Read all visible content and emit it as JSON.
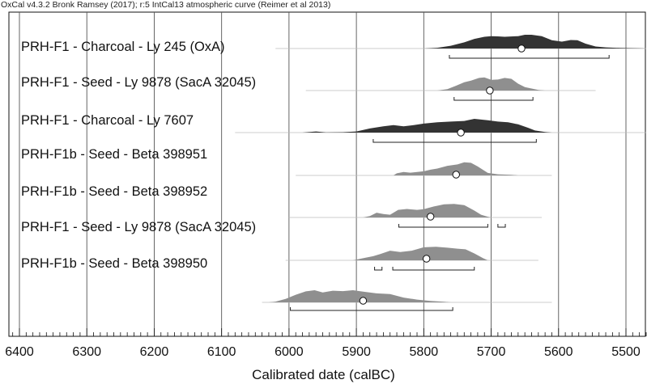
{
  "header": "OxCal v4.3.2 Bronk Ramsey (2017); r:5 IntCal13 atmospheric curve (Reimer et al 2013)",
  "chart_data": {
    "type": "area",
    "title": "",
    "xlabel": "Calibrated date (calBC)",
    "ylabel": "",
    "xlim": [
      6410,
      5470
    ],
    "x_reversed": true,
    "grid": true,
    "x_ticks": [
      6400,
      6300,
      6200,
      6100,
      6000,
      5900,
      5800,
      5700,
      5600,
      5500
    ],
    "series": [
      {
        "name": "PRH-F1 - Charcoal - Ly 245 (OxA)",
        "style": "dark",
        "median": 5655,
        "range_68": [
          5762,
          5525
        ],
        "outline": [
          6020,
          5470
        ],
        "density": [
          [
            5800,
            0
          ],
          [
            5780,
            0.05
          ],
          [
            5760,
            0.2
          ],
          [
            5740,
            0.45
          ],
          [
            5725,
            0.7
          ],
          [
            5710,
            0.85
          ],
          [
            5700,
            0.9
          ],
          [
            5690,
            0.88
          ],
          [
            5680,
            0.85
          ],
          [
            5660,
            0.9
          ],
          [
            5650,
            1.0
          ],
          [
            5640,
            1.0
          ],
          [
            5625,
            0.9
          ],
          [
            5610,
            0.6
          ],
          [
            5595,
            0.5
          ],
          [
            5582,
            0.62
          ],
          [
            5572,
            0.6
          ],
          [
            5560,
            0.35
          ],
          [
            5545,
            0.15
          ],
          [
            5530,
            0.08
          ],
          [
            5510,
            0.04
          ],
          [
            5480,
            0.01
          ],
          [
            5470,
            0
          ]
        ]
      },
      {
        "name": "PRH-F1 - Seed - Ly 9878 (SacA 32045)",
        "style": "light",
        "median": 5702,
        "range_68": [
          5755,
          5638
        ],
        "outline": [
          5975,
          5545
        ],
        "density": [
          [
            5780,
            0
          ],
          [
            5765,
            0.1
          ],
          [
            5752,
            0.35
          ],
          [
            5740,
            0.6
          ],
          [
            5730,
            0.72
          ],
          [
            5718,
            0.92
          ],
          [
            5710,
            0.95
          ],
          [
            5700,
            0.78
          ],
          [
            5690,
            0.8
          ],
          [
            5680,
            0.92
          ],
          [
            5670,
            0.85
          ],
          [
            5660,
            0.5
          ],
          [
            5650,
            0.25
          ],
          [
            5640,
            0.15
          ],
          [
            5630,
            0.05
          ],
          [
            5620,
            0
          ]
        ]
      },
      {
        "name": "PRH-F1 - Charcoal - Ly 7607",
        "style": "dark",
        "median": 5745,
        "range_68": [
          5875,
          5633
        ],
        "outline": [
          6080,
          5470
        ],
        "density": [
          [
            5980,
            0
          ],
          [
            5960,
            0.08
          ],
          [
            5945,
            0.02
          ],
          [
            5920,
            0.03
          ],
          [
            5900,
            0.08
          ],
          [
            5880,
            0.3
          ],
          [
            5860,
            0.45
          ],
          [
            5845,
            0.55
          ],
          [
            5830,
            0.45
          ],
          [
            5815,
            0.55
          ],
          [
            5800,
            0.65
          ],
          [
            5780,
            0.75
          ],
          [
            5760,
            0.8
          ],
          [
            5740,
            0.85
          ],
          [
            5725,
            1.0
          ],
          [
            5705,
            0.9
          ],
          [
            5690,
            0.8
          ],
          [
            5675,
            0.75
          ],
          [
            5660,
            0.6
          ],
          [
            5645,
            0.35
          ],
          [
            5635,
            0.15
          ],
          [
            5620,
            0.04
          ],
          [
            5610,
            0
          ]
        ]
      },
      {
        "name": "PRH-F1b - Seed - Beta 398951",
        "style": "light",
        "median": 5752,
        "range_68": [],
        "outline": [
          5990,
          5610
        ],
        "density": [
          [
            5845,
            0
          ],
          [
            5840,
            0.15
          ],
          [
            5830,
            0.25
          ],
          [
            5820,
            0.2
          ],
          [
            5800,
            0.3
          ],
          [
            5790,
            0.42
          ],
          [
            5780,
            0.5
          ],
          [
            5765,
            0.7
          ],
          [
            5750,
            0.8
          ],
          [
            5740,
            0.95
          ],
          [
            5730,
            0.92
          ],
          [
            5720,
            0.65
          ],
          [
            5705,
            0.18
          ],
          [
            5690,
            0.08
          ],
          [
            5670,
            0.05
          ],
          [
            5660,
            0
          ]
        ]
      },
      {
        "name": "PRH-F1b - Seed - Beta 398952",
        "style": "light",
        "median": 5790,
        "range_68": [
          [
            5837,
            5705
          ],
          [
            5690,
            5679
          ]
        ],
        "outline": [
          6000,
          5625
        ],
        "density": [
          [
            5890,
            0
          ],
          [
            5880,
            0.1
          ],
          [
            5870,
            0.35
          ],
          [
            5860,
            0.25
          ],
          [
            5850,
            0.2
          ],
          [
            5838,
            0.55
          ],
          [
            5825,
            0.62
          ],
          [
            5810,
            0.55
          ],
          [
            5800,
            0.6
          ],
          [
            5785,
            0.8
          ],
          [
            5770,
            0.95
          ],
          [
            5755,
            0.98
          ],
          [
            5740,
            0.9
          ],
          [
            5725,
            0.5
          ],
          [
            5715,
            0.2
          ],
          [
            5705,
            0.05
          ],
          [
            5700,
            0
          ]
        ]
      },
      {
        "name": "PRH-F1 - Seed - Ly 9878 (SacA 32045)",
        "style": "light",
        "median": 5796,
        "range_68": [
          [
            5873,
            5862
          ],
          [
            5846,
            5725
          ]
        ],
        "outline": [
          6005,
          5630
        ],
        "density": [
          [
            5905,
            0
          ],
          [
            5890,
            0.15
          ],
          [
            5875,
            0.3
          ],
          [
            5865,
            0.45
          ],
          [
            5850,
            0.7
          ],
          [
            5835,
            0.6
          ],
          [
            5818,
            0.7
          ],
          [
            5800,
            0.95
          ],
          [
            5782,
            0.98
          ],
          [
            5765,
            0.92
          ],
          [
            5750,
            0.85
          ],
          [
            5738,
            0.8
          ],
          [
            5725,
            0.5
          ],
          [
            5712,
            0.15
          ],
          [
            5705,
            0
          ]
        ]
      },
      {
        "name": "PRH-F1b - Seed - Beta 398950",
        "style": "light",
        "median": 5890,
        "range_68": [
          5998,
          5757
        ],
        "outline": [
          6040,
          5610
        ],
        "density": [
          [
            6030,
            0
          ],
          [
            6020,
            0.05
          ],
          [
            6005,
            0.25
          ],
          [
            5990,
            0.55
          ],
          [
            5975,
            0.8
          ],
          [
            5962,
            0.88
          ],
          [
            5950,
            0.72
          ],
          [
            5935,
            0.85
          ],
          [
            5920,
            0.82
          ],
          [
            5905,
            0.88
          ],
          [
            5890,
            0.78
          ],
          [
            5870,
            0.65
          ],
          [
            5850,
            0.6
          ],
          [
            5830,
            0.35
          ],
          [
            5810,
            0.2
          ],
          [
            5790,
            0.1
          ],
          [
            5770,
            0.04
          ],
          [
            5760,
            0
          ]
        ]
      }
    ]
  }
}
